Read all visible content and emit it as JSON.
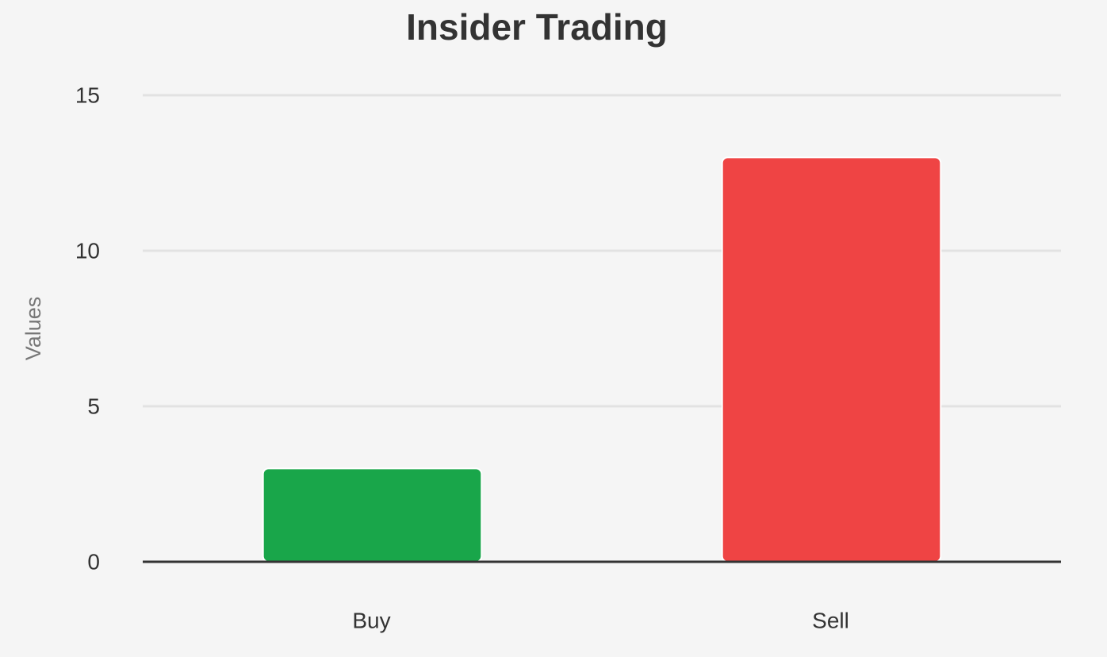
{
  "chart_data": {
    "type": "bar",
    "title": "Insider Trading",
    "y_label": "Values",
    "categories": [
      "Buy",
      "Sell"
    ],
    "values": [
      3,
      13
    ],
    "colors": [
      "#19a64a",
      "#ef4444"
    ],
    "ylim": [
      0,
      15
    ],
    "yticks": [
      0,
      5,
      10,
      15
    ],
    "grid": true
  }
}
